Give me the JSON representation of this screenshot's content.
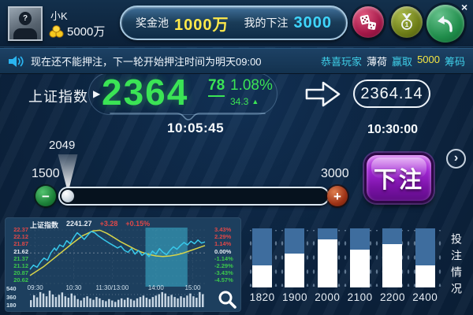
{
  "app": {
    "close_glyph": "×"
  },
  "topbar": {
    "user": {
      "name": "小K",
      "balance": "5000万",
      "avatar_glyph": "?"
    },
    "pool_label": "奖金池",
    "pool_value": "1000万",
    "mybet_label": "我的下注",
    "mybet_value": "3000"
  },
  "ticker": {
    "announcement": "现在还不能押注，下一轮开始押注时间为明天09:00",
    "winner": {
      "prefix": "恭喜玩家",
      "name": "薄荷",
      "verb": "赢取",
      "amount": "5000",
      "suffix": "筹码"
    }
  },
  "index_board": {
    "label": "上证指数",
    "value_int": "2364",
    "value_dec": "78",
    "pct": "1.08%",
    "delta": "34.3",
    "time_current": "10:05:45",
    "target_value": "2364.14",
    "time_target": "10:30:00"
  },
  "bet_slider": {
    "current": "2049",
    "min": "1500",
    "max": "3000",
    "minus_glyph": "−",
    "plus_glyph": "+"
  },
  "bet_button_label": "下注",
  "controls": {
    "next_glyph": "›"
  },
  "mini_chart": {
    "type": "line",
    "title": "上证指数",
    "price": "2241.27",
    "change": "+3.28",
    "change_pct": "+0.15%",
    "left_labels": [
      "22.37",
      "22.12",
      "21.87",
      "21.62",
      "21.37",
      "21.12",
      "20.87",
      "20.62"
    ],
    "right_labels": [
      "3.43%",
      "2.29%",
      "1.14%",
      "0.00%",
      "-1.14%",
      "-2.29%",
      "-3.43%",
      "-4.57%"
    ],
    "x_labels": [
      "09:30",
      "10:30",
      "11:30/13:00",
      "14:00",
      "15:00"
    ],
    "x_label_pos_pct": [
      3,
      25,
      47,
      72,
      93
    ],
    "vol_labels": [
      "540",
      "360",
      "180"
    ],
    "value_range": [
      20.62,
      22.37
    ],
    "selection_pct": [
      66,
      90
    ],
    "price_line": [
      [
        0,
        21.08
      ],
      [
        2,
        21.22
      ],
      [
        4,
        21.15
      ],
      [
        6,
        21.32
      ],
      [
        8,
        21.45
      ],
      [
        10,
        21.38
      ],
      [
        12,
        21.62
      ],
      [
        14,
        21.78
      ],
      [
        15,
        21.7
      ],
      [
        17,
        21.88
      ],
      [
        19,
        21.82
      ],
      [
        21,
        22.02
      ],
      [
        23,
        21.92
      ],
      [
        25,
        22.12
      ],
      [
        27,
        22.28
      ],
      [
        29,
        22.18
      ],
      [
        31,
        22.06
      ],
      [
        33,
        22.2
      ],
      [
        35,
        22.32
      ],
      [
        37,
        22.28
      ],
      [
        39,
        22.18
      ],
      [
        42,
        22.06
      ],
      [
        45,
        21.95
      ],
      [
        48,
        21.85
      ],
      [
        50,
        21.78
      ],
      [
        52,
        21.84
      ],
      [
        54,
        21.7
      ],
      [
        56,
        21.64
      ],
      [
        58,
        21.76
      ],
      [
        60,
        21.58
      ],
      [
        62,
        21.7
      ],
      [
        64,
        21.54
      ],
      [
        66,
        21.62
      ],
      [
        68,
        21.5
      ],
      [
        70,
        21.68
      ],
      [
        72,
        21.58
      ],
      [
        74,
        21.76
      ],
      [
        76,
        21.64
      ],
      [
        78,
        21.56
      ],
      [
        80,
        21.7
      ],
      [
        82,
        21.82
      ],
      [
        84,
        21.74
      ],
      [
        86,
        21.86
      ],
      [
        88,
        21.96
      ],
      [
        90,
        21.88
      ],
      [
        92,
        22.0
      ],
      [
        94,
        21.92
      ],
      [
        96,
        22.04
      ],
      [
        98,
        21.94
      ],
      [
        100,
        21.98
      ]
    ],
    "ma_line": [
      [
        0,
        20.88
      ],
      [
        8,
        21.18
      ],
      [
        16,
        21.55
      ],
      [
        24,
        21.92
      ],
      [
        30,
        22.18
      ],
      [
        36,
        22.34
      ],
      [
        40,
        22.36
      ],
      [
        44,
        22.26
      ],
      [
        48,
        22.12
      ],
      [
        52,
        21.98
      ],
      [
        56,
        21.86
      ],
      [
        60,
        21.74
      ],
      [
        64,
        21.64
      ],
      [
        68,
        21.57
      ],
      [
        72,
        21.52
      ],
      [
        76,
        21.5
      ],
      [
        80,
        21.52
      ],
      [
        84,
        21.56
      ],
      [
        88,
        21.62
      ],
      [
        92,
        21.7
      ],
      [
        96,
        21.78
      ],
      [
        100,
        21.86
      ]
    ],
    "volume": [
      200,
      340,
      280,
      430,
      390,
      310,
      470,
      360,
      290,
      350,
      420,
      310,
      270,
      390,
      330,
      230,
      190,
      270,
      310,
      250,
      210,
      290,
      250,
      200,
      170,
      230,
      190,
      150,
      210,
      250,
      210,
      270,
      230,
      190,
      250,
      290,
      330,
      270,
      230,
      290,
      330,
      370,
      430,
      390,
      310,
      350,
      290,
      250,
      310,
      270,
      330,
      390,
      310,
      270,
      430,
      370
    ],
    "colors": {
      "price": "#38c8ea",
      "ma": "#d8d44a",
      "up_text": "#e04848",
      "down_text": "#3cc84c",
      "selection": "rgba(64,192,220,0.5)"
    }
  },
  "bet_chart": {
    "type": "bar",
    "categories": [
      "1820",
      "1900",
      "2000",
      "2100",
      "2200",
      "2400"
    ],
    "white_pct": [
      37,
      57,
      81,
      64,
      73,
      37
    ],
    "side_label": "投注情况",
    "colors": {
      "bar": "#3e6d9e",
      "fill": "#ffffff"
    }
  }
}
